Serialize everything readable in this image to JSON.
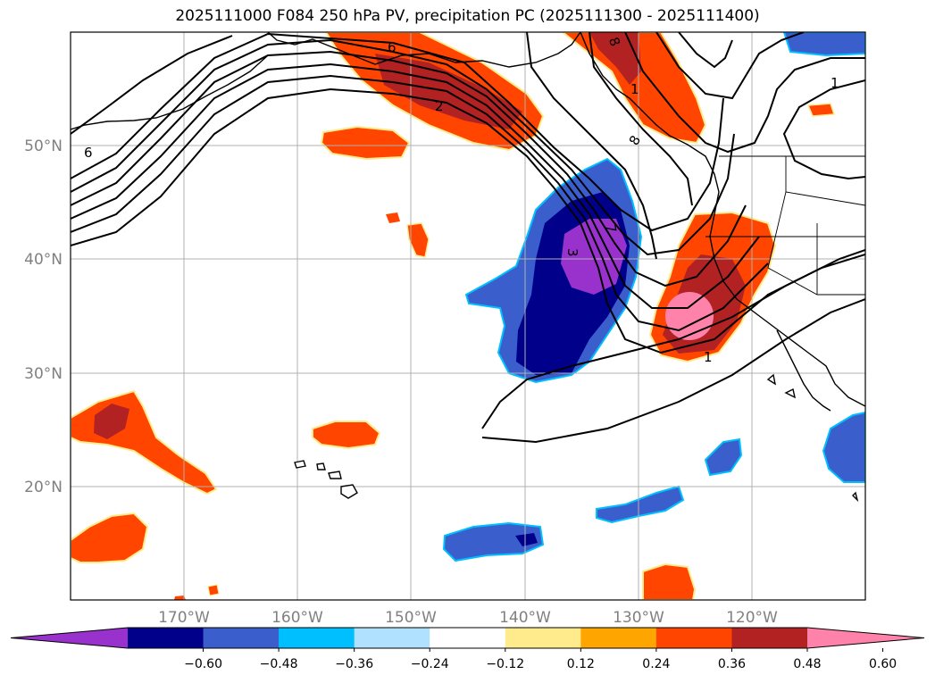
{
  "title": "2025111000 F084 250 hPa PV, precipitation PC (2025111300 - 2025111400)",
  "lat_labels": [
    "50°N",
    "40°N",
    "30°N",
    "20°N"
  ],
  "lon_labels": [
    "170°W",
    "160°W",
    "150°W",
    "140°W",
    "130°W",
    "120°W"
  ],
  "colorbar": {
    "ticks": [
      "−0.60",
      "−0.48",
      "−0.36",
      "−0.24",
      "−0.12",
      "0.12",
      "0.24",
      "0.36",
      "0.48",
      "0.60"
    ],
    "colors": [
      "#9932cc",
      "#00008b",
      "#3a5fcd",
      "#00bfff",
      "#b0e2ff",
      "#ffffff",
      "#ffeb8c",
      "#ffa500",
      "#ff4500",
      "#b22222",
      "#ff82ab"
    ]
  },
  "contour_labels": [
    "6",
    "2",
    "8",
    "1",
    "7",
    "8",
    "3",
    "1",
    "1",
    "6"
  ],
  "colors": {
    "pos_light": "#ffeb8c",
    "pos_orange": "#ffa500",
    "pos_red": "#ff4500",
    "pos_dark": "#b22222",
    "pos_pink": "#ff82ab",
    "neg_light": "#b0e2ff",
    "neg_cyan": "#00bfff",
    "neg_blue": "#3a5fcd",
    "neg_navy": "#00008b",
    "neg_purple": "#9932cc"
  }
}
